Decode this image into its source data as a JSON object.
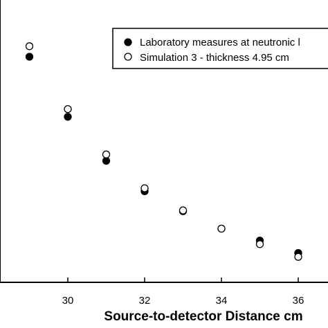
{
  "chart_data": {
    "type": "scatter",
    "title": "",
    "xlabel": "Source-to-detector Distance cm",
    "ylabel": "",
    "xlim": [
      27.5,
      37.2
    ],
    "ylim": [
      0,
      1
    ],
    "x_ticks": [
      30,
      32,
      34,
      36
    ],
    "grid": false,
    "legend_position": "top-right",
    "series": [
      {
        "name": "Laboratory measures at neutronic l",
        "marker": "filled-circle",
        "color": "#000000",
        "x": [
          29,
          30,
          31,
          32,
          33,
          34,
          35,
          36
        ],
        "y": [
          0.815,
          0.598,
          0.439,
          0.329,
          0.257,
          0.194,
          0.151,
          0.106
        ]
      },
      {
        "name": "Simulation 3 - thickness 4.95 cm",
        "marker": "open-circle",
        "color": "#000000",
        "x": [
          29,
          30,
          31,
          32,
          33,
          34,
          35,
          36
        ],
        "y": [
          0.853,
          0.626,
          0.462,
          0.34,
          0.26,
          0.194,
          0.138,
          0.092
        ]
      }
    ]
  }
}
